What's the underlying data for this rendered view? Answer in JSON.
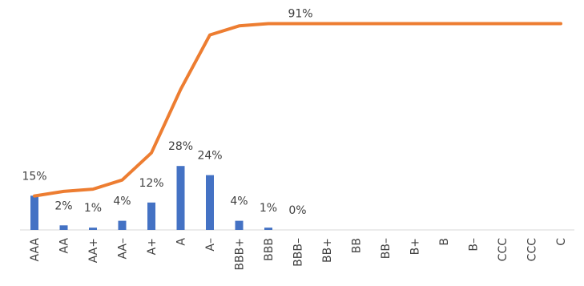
{
  "chart_data": {
    "type": "bar+line",
    "categories": [
      "AAA",
      "AA",
      "AA+",
      "AA–",
      "A+",
      "A",
      "A–",
      "BBB+",
      "BBB",
      "BBB–",
      "BB+",
      "BB",
      "BB–",
      "B+",
      "B",
      "B–",
      "CCC",
      "CCC",
      "C"
    ],
    "series": [
      {
        "kind": "bar",
        "values": [
          15,
          2,
          1,
          4,
          12,
          28,
          24,
          4,
          1,
          0,
          null,
          null,
          null,
          null,
          null,
          null,
          null,
          null,
          null
        ],
        "labels": [
          "15%",
          "2%",
          "1%",
          "4%",
          "12%",
          "28%",
          "24%",
          "4%",
          "1%",
          "0%",
          "",
          "",
          "",
          "",
          "",
          "",
          "",
          "",
          ""
        ],
        "color": "#4472C4"
      },
      {
        "kind": "line",
        "values": [
          15,
          17,
          18,
          22,
          34,
          62,
          86,
          90,
          91,
          91,
          91,
          91,
          91,
          91,
          91,
          91,
          91,
          91,
          91
        ],
        "labels": [
          "",
          "",
          "",
          "",
          "",
          "",
          "",
          "",
          "91%",
          "",
          "",
          "",
          "",
          "",
          "",
          "",
          "",
          "",
          ""
        ],
        "color": "#ED7D31"
      }
    ],
    "ylim": [
      0,
      100
    ],
    "legend": "none",
    "grid": false
  }
}
